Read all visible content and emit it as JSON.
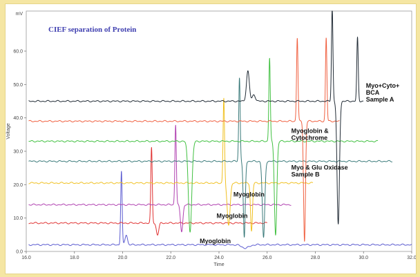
{
  "chart_data": {
    "type": "line",
    "title": "CIEF separation of Protein",
    "xlabel": "Time",
    "ylabel": "Voltage",
    "y_unit": "mV",
    "xlim": [
      16.0,
      32.0
    ],
    "ylim": [
      0,
      72
    ],
    "x_ticks": [
      16.0,
      18.0,
      20.0,
      22.0,
      24.0,
      26.0,
      28.0,
      30.0,
      32.0
    ],
    "x_tick_labels": [
      "16.0",
      "18.0",
      "20.0",
      "22.0",
      "24.0",
      "26.0",
      "28.0",
      "30.0",
      "32.0"
    ],
    "y_ticks": [
      0,
      10,
      20,
      30,
      40,
      50,
      60
    ],
    "y_tick_labels": [
      "0.0",
      "10.0",
      "20.0",
      "30.0",
      "40.0",
      "50.0",
      "60.0"
    ],
    "grid": false,
    "legend": "none",
    "title_color": "#4040b0",
    "series": [
      {
        "color": "#5a5ad0",
        "x_range": [
          16.1,
          32.0
        ],
        "baseline": 2,
        "peaks": [
          [
            19.95,
            24,
            0.03
          ],
          [
            20.15,
            5,
            0.05
          ],
          [
            25.1,
            1,
            0.15
          ]
        ]
      },
      {
        "color": "#e03030",
        "x_range": [
          16.1,
          26.0
        ],
        "baseline": 8.5,
        "peaks": [
          [
            21.2,
            31,
            0.03
          ],
          [
            21.45,
            5,
            0.05
          ]
        ]
      },
      {
        "color": "#b040b0",
        "x_range": [
          16.1,
          27.0
        ],
        "baseline": 14,
        "peaks": [
          [
            22.2,
            38,
            0.03
          ],
          [
            22.45,
            6,
            0.05
          ]
        ]
      },
      {
        "color": "#f0c020",
        "x_range": [
          16.1,
          27.9
        ],
        "baseline": 20.5,
        "peaks": [
          [
            24.2,
            46,
            0.03
          ],
          [
            24.4,
            8,
            0.06
          ],
          [
            25.35,
            6,
            0.04
          ]
        ]
      },
      {
        "color": "#3a7a7a",
        "x_range": [
          16.1,
          31.2
        ],
        "baseline": 27,
        "peaks": [
          [
            24.85,
            52,
            0.03
          ],
          [
            25.05,
            4,
            0.04
          ],
          [
            25.85,
            4,
            0.05
          ]
        ]
      },
      {
        "color": "#40c040",
        "x_range": [
          16.1,
          30.6
        ],
        "baseline": 33,
        "peaks": [
          [
            22.8,
            6,
            0.07
          ],
          [
            26.1,
            58,
            0.03
          ],
          [
            26.35,
            5,
            0.05
          ]
        ]
      },
      {
        "color": "#f06040",
        "x_range": [
          16.1,
          29.0
        ],
        "baseline": 39,
        "peaks": [
          [
            27.25,
            64,
            0.03
          ],
          [
            27.55,
            3,
            0.04
          ],
          [
            28.45,
            64,
            0.03
          ]
        ]
      },
      {
        "color": "#202a34",
        "x_range": [
          16.1,
          30.0
        ],
        "baseline": 45,
        "peaks": [
          [
            25.2,
            54,
            0.06
          ],
          [
            25.45,
            47,
            0.06
          ],
          [
            28.7,
            73,
            0.03
          ],
          [
            28.95,
            8,
            0.05
          ],
          [
            29.75,
            64,
            0.03
          ]
        ]
      }
    ],
    "annotations": [
      {
        "lines": [
          "Myoglobin"
        ],
        "x": 23.2,
        "y": 2.5
      },
      {
        "lines": [
          "Myoglobin"
        ],
        "x": 23.9,
        "y": 10
      },
      {
        "lines": [
          "Myoglobin"
        ],
        "x": 24.6,
        "y": 16.5
      },
      {
        "lines": [
          "Myo & Glu Oxidase",
          "Sample B"
        ],
        "x": 27.0,
        "y": 24.5
      },
      {
        "lines": [
          "Myoglobin &",
          "Cytochrome"
        ],
        "x": 27.0,
        "y": 35.5
      },
      {
        "lines": [
          "Myo+Cyto+",
          "BCA",
          "Sample A"
        ],
        "x": 30.1,
        "y": 49
      }
    ]
  }
}
